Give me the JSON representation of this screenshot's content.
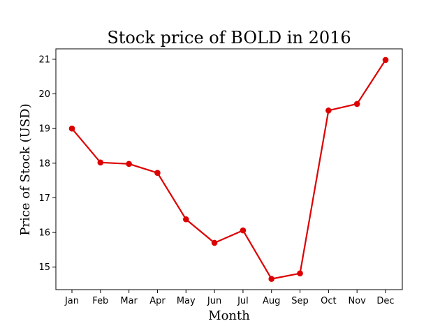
{
  "chart_data": {
    "type": "line",
    "title": "Stock price of BOLD in 2016",
    "xlabel": "Month",
    "ylabel": "Price of Stock (USD)",
    "categories": [
      "Jan",
      "Feb",
      "Mar",
      "Apr",
      "May",
      "Jun",
      "Jul",
      "Aug",
      "Sep",
      "Oct",
      "Nov",
      "Dec"
    ],
    "series": [
      {
        "values": [
          19.0,
          18.02,
          17.98,
          17.72,
          16.38,
          15.7,
          16.06,
          14.66,
          14.82,
          19.52,
          19.71,
          20.98
        ],
        "color": "#dd0000"
      }
    ],
    "yticks": [
      15,
      16,
      17,
      18,
      19,
      20,
      21
    ],
    "ylim": [
      14.35,
      21.3
    ],
    "grid": false,
    "marker": "circle"
  }
}
